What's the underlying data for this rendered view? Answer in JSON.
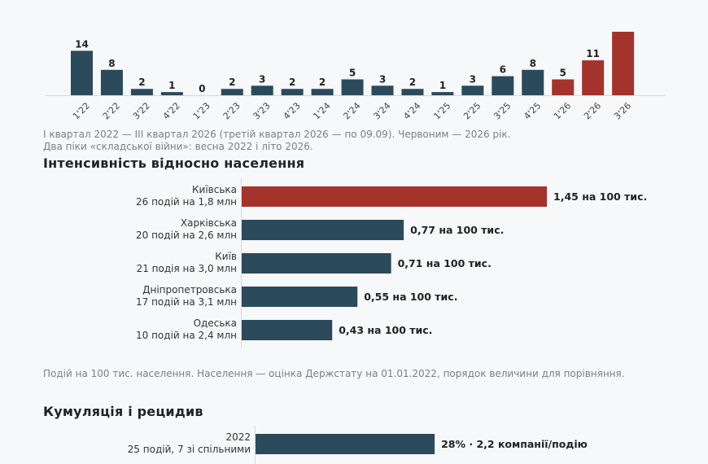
{
  "colors": {
    "dark": "#2b4a5c",
    "accent": "#a3332b",
    "axis": "#d6d9dd",
    "label": "#222222",
    "muted": "#7a7f86"
  },
  "quarterly": {
    "note_line1": "I квартал 2022 — III квартал 2026 (третій квартал 2026 — по 09.09). Червоним — 2026 рік.",
    "note_line2": "Два піки «складської війни»: весна 2022 і літо 2026."
  },
  "intensity": {
    "heading": "Інтенсивність відносно населення",
    "note": "Подій на 100 тис. населення. Населення — оцінка Держстату на 01.01.2022, порядок величини для порівняння."
  },
  "cumulation": {
    "heading": "Кумуляція і рецидив"
  },
  "chart_data": [
    {
      "type": "bar",
      "orientation": "vertical",
      "categories": [
        "1'22",
        "2'22",
        "3'22",
        "4'22",
        "1'23",
        "2'23",
        "3'23",
        "4'23",
        "1'24",
        "2'24",
        "3'24",
        "4'24",
        "1'25",
        "2'25",
        "3'25",
        "4'25",
        "1'26",
        "2'26",
        "3'26"
      ],
      "values": [
        14,
        8,
        2,
        1,
        0,
        2,
        3,
        2,
        2,
        5,
        3,
        2,
        1,
        3,
        6,
        8,
        5,
        11,
        20
      ],
      "value_labels": [
        "14",
        "8",
        "2",
        "1",
        "0",
        "2",
        "3",
        "2",
        "2",
        "5",
        "3",
        "2",
        "1",
        "3",
        "6",
        "8",
        "5",
        "11",
        ""
      ],
      "highlight_categories": [
        "1'26",
        "2'26",
        "3'26"
      ],
      "grid": false
    },
    {
      "type": "bar",
      "orientation": "horizontal",
      "categories": [
        {
          "name": "Київська",
          "sub": "26 подій на 1,8 млн"
        },
        {
          "name": "Харківська",
          "sub": "20 подій на 2,6 млн"
        },
        {
          "name": "Київ",
          "sub": "21 подія на 3,0 млн"
        },
        {
          "name": "Дніпропетровська",
          "sub": "17 подій на 3,1 млн"
        },
        {
          "name": "Одеська",
          "sub": "10 подій на 2,4 млн"
        }
      ],
      "values": [
        1.45,
        0.77,
        0.71,
        0.55,
        0.43
      ],
      "value_labels": [
        "1,45 на 100 тис.",
        "0,77 на 100 тис.",
        "0,71 на 100 тис.",
        "0,55 на 100 тис.",
        "0,43 на 100 тис."
      ],
      "highlight_index": 0,
      "xlim": [
        0,
        1.45
      ],
      "grid": false
    },
    {
      "type": "bar",
      "orientation": "horizontal",
      "categories": [
        {
          "name": "2022",
          "sub": "25 подій, 7 зі спільними"
        }
      ],
      "values": [
        28
      ],
      "value_labels": [
        "28% · 2,2 компанії/подію"
      ],
      "grid": false
    }
  ]
}
